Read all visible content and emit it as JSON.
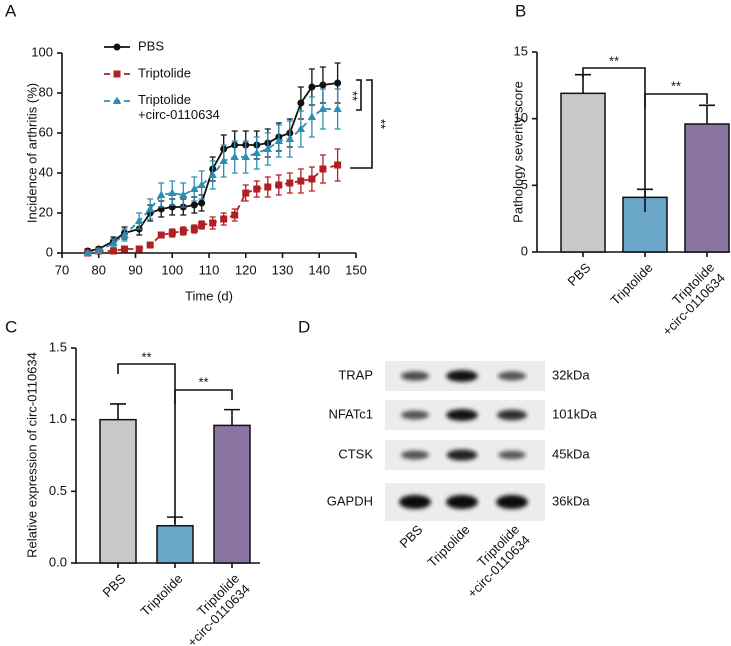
{
  "chart_data": [
    {
      "type": "line",
      "panel": "A",
      "xlabel": "Time (d)",
      "ylabel": "Incidence of arthritis (%)",
      "x": [
        77,
        80,
        84,
        87,
        91,
        94,
        97,
        100,
        103,
        106,
        108,
        111,
        114,
        117,
        120,
        123,
        126,
        129,
        132,
        135,
        138,
        141,
        145
      ],
      "series": [
        {
          "name": "PBS",
          "color": "#111111",
          "marker": "circle",
          "dash": false,
          "values": [
            1,
            2,
            6,
            10,
            12,
            20,
            22,
            23,
            23,
            24,
            25,
            42,
            52,
            54,
            54,
            54,
            55,
            58,
            60,
            75,
            83,
            84,
            85
          ],
          "errors": [
            1,
            1,
            2,
            3,
            3,
            4,
            4,
            4,
            4,
            4,
            4,
            6,
            7,
            7,
            7,
            7,
            7,
            7,
            7,
            8,
            9,
            9,
            10
          ]
        },
        {
          "name": "Triptolide",
          "color": "#b11f24",
          "marker": "square",
          "dash": true,
          "values": [
            0,
            1,
            1,
            2,
            2,
            4,
            9,
            10,
            11,
            12,
            14,
            15,
            17,
            19,
            30,
            32,
            33,
            34,
            35,
            36,
            37,
            42,
            44
          ],
          "errors": [
            0,
            0,
            1,
            1,
            1,
            1,
            1,
            2,
            2,
            2,
            2,
            3,
            3,
            3,
            4,
            4,
            5,
            5,
            5,
            6,
            6,
            7,
            8
          ]
        },
        {
          "name": "Triptolide\n+circ-0110634",
          "color": "#2b8fb3",
          "marker": "triangle",
          "dash": true,
          "values": [
            0,
            1,
            5,
            9,
            16,
            22,
            29,
            30,
            29,
            32,
            34,
            39,
            46,
            48,
            48,
            50,
            52,
            56,
            57,
            62,
            68,
            72,
            72
          ],
          "errors": [
            0,
            1,
            2,
            3,
            4,
            5,
            6,
            6,
            6,
            6,
            7,
            7,
            8,
            8,
            8,
            8,
            8,
            8,
            9,
            9,
            10,
            10,
            10
          ]
        }
      ],
      "xlim": [
        70,
        150
      ],
      "xticks": [
        70,
        80,
        90,
        100,
        110,
        120,
        130,
        140,
        150
      ],
      "ylim": [
        0,
        100
      ],
      "yticks": [
        0,
        20,
        40,
        60,
        80,
        100
      ],
      "annotations": [
        {
          "text": "**"
        },
        {
          "text": "**"
        }
      ]
    },
    {
      "type": "bar",
      "panel": "B",
      "ylabel": "Pathology severity score",
      "categories": [
        "PBS",
        "Triptolide",
        "Triptolide\n+circ-0110634"
      ],
      "values": [
        11.9,
        4.1,
        9.6
      ],
      "errors": [
        1.4,
        0.6,
        1.4
      ],
      "colors": [
        "#c8c8c8",
        "#6aa6c8",
        "#8a74a1"
      ],
      "ylim": [
        0,
        15
      ],
      "yticks": [
        0,
        5,
        10,
        15
      ],
      "annotations": [
        {
          "text": "**"
        },
        {
          "text": "**"
        }
      ]
    },
    {
      "type": "bar",
      "panel": "C",
      "ylabel": "Relative expression of circ-0110634",
      "categories": [
        "PBS",
        "Triptolide",
        "Triptolide\n+circ-0110634"
      ],
      "values": [
        1.0,
        0.26,
        0.96
      ],
      "errors": [
        0.11,
        0.06,
        0.11
      ],
      "colors": [
        "#c8c8c8",
        "#6aa6c8",
        "#8a74a1"
      ],
      "ylim": [
        0,
        1.5
      ],
      "yticks": [
        {
          "value": 0,
          "label": "0.0"
        },
        0.5,
        {
          "value": 1,
          "label": "1.0"
        },
        1.5
      ],
      "annotations": [
        {
          "text": "**"
        },
        {
          "text": "**"
        }
      ]
    }
  ],
  "blot": {
    "panel": "D",
    "proteins": [
      {
        "name": "TRAP",
        "size": "32kDa"
      },
      {
        "name": "NFATc1",
        "size": "101kDa"
      },
      {
        "name": "CTSK",
        "size": "45kDa"
      },
      {
        "name": "GAPDH",
        "size": "36kDa"
      }
    ],
    "lanes": [
      "PBS",
      "Triptolide",
      "Triptolide\n+circ-0110634"
    ]
  }
}
